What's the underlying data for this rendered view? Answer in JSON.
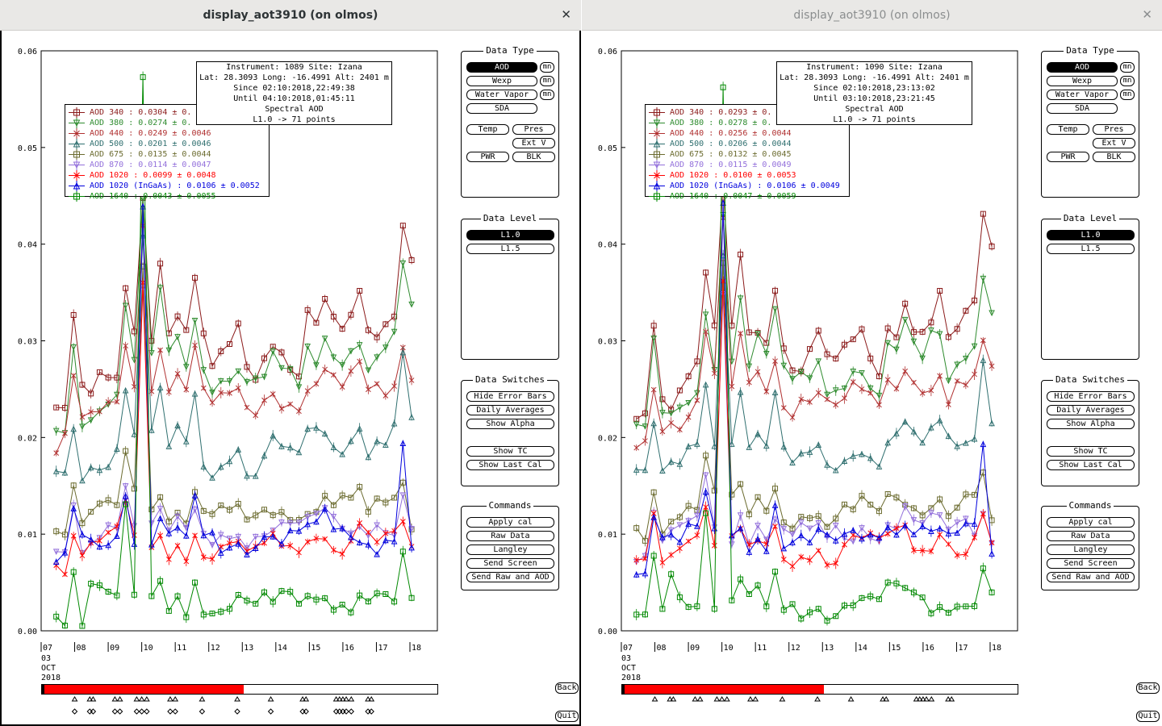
{
  "windows": [
    {
      "title": "display_aot3910 (on olmos)",
      "info": {
        "line1": "Instrument: 1089 Site: Izana",
        "line2": "Lat: 28.3093 Long: -16.4991 Alt: 2401 m",
        "line3": "Since 02:10:2018,22:49:38",
        "line4": "Until 04:10:2018,01:45:11",
        "line5": "Spectral AOD",
        "line6": "L1.0 -> 71 points"
      },
      "legend": [
        {
          "label": "AOD 340",
          "stat": ": 0.0304 ± 0.",
          "color": "#8b1a1a",
          "marker": "square"
        },
        {
          "label": "AOD 380",
          "stat": ": 0.0274 ± 0.",
          "color": "#2e8b2e",
          "marker": "tri-down"
        },
        {
          "label": "AOD 440",
          "stat": ": 0.0249 ± 0.0046",
          "color": "#b03030",
          "marker": "x"
        },
        {
          "label": "AOD 500",
          "stat": ": 0.0201 ± 0.0046",
          "color": "#2f6f6f",
          "marker": "tri-up"
        },
        {
          "label": "AOD 675",
          "stat": ": 0.0135 ± 0.0044",
          "color": "#6b6b2f",
          "marker": "square"
        },
        {
          "label": "AOD 870",
          "stat": ": 0.0114 ± 0.0047",
          "color": "#9370db",
          "marker": "tri-down"
        },
        {
          "label": "AOD 1020",
          "stat": ": 0.0099 ± 0.0048",
          "color": "#ff0000",
          "marker": "x"
        },
        {
          "label": "AOD 1020 (InGaAs)",
          "stat": ": 0.0106 ± 0.0052",
          "color": "#0000dd",
          "marker": "tri-up"
        },
        {
          "label": "AOD 1640",
          "stat": ": 0.0043 ± 0.0055",
          "color": "#008800",
          "marker": "square"
        }
      ],
      "timebar_fill": 0.51
    },
    {
      "title": "display_aot3910 (on olmos)",
      "info": {
        "line1": "Instrument: 1090 Site: Izana",
        "line2": "Lat: 28.3093 Long: -16.4991 Alt: 2401 m",
        "line3": "Since 02:10:2018,23:13:02",
        "line4": "Until 03:10:2018,23:21:45",
        "line5": "Spectral AOD",
        "line6": "L1.0 -> 71 points"
      },
      "legend": [
        {
          "label": "AOD 340",
          "stat": ": 0.0293 ± 0.",
          "color": "#8b1a1a",
          "marker": "square"
        },
        {
          "label": "AOD 380",
          "stat": ": 0.0278 ± 0.",
          "color": "#2e8b2e",
          "marker": "tri-down"
        },
        {
          "label": "AOD 440",
          "stat": ": 0.0256 ± 0.0044",
          "color": "#b03030",
          "marker": "x"
        },
        {
          "label": "AOD 500",
          "stat": ": 0.0206 ± 0.0044",
          "color": "#2f6f6f",
          "marker": "tri-up"
        },
        {
          "label": "AOD 675",
          "stat": ": 0.0132 ± 0.0045",
          "color": "#6b6b2f",
          "marker": "square"
        },
        {
          "label": "AOD 870",
          "stat": ": 0.0115 ± 0.0049",
          "color": "#9370db",
          "marker": "tri-down"
        },
        {
          "label": "AOD 1020",
          "stat": ": 0.0100 ± 0.0053",
          "color": "#ff0000",
          "marker": "x"
        },
        {
          "label": "AOD 1020 (InGaAs)",
          "stat": ": 0.0106 ± 0.0049",
          "color": "#0000dd",
          "marker": "tri-up"
        },
        {
          "label": "AOD 1640",
          "stat": ": 0.0047 ± 0.0059",
          "color": "#008800",
          "marker": "square"
        }
      ],
      "timebar_fill": 0.51
    }
  ],
  "panels": {
    "data_type": {
      "title": "Data Type",
      "aod": "AOD",
      "wexp": "Wexp",
      "water_vapor": "Water Vapor",
      "sda": "SDA",
      "mn": "mn",
      "temp": "Temp",
      "pres": "Pres",
      "ext_v": "Ext V",
      "pwr": "PWR",
      "blk": "BLK"
    },
    "data_level": {
      "title": "Data Level",
      "l10": "L1.0",
      "l15": "L1.5"
    },
    "data_switches": {
      "title": "Data Switches",
      "hide_error_bars": "Hide Error Bars",
      "daily_averages": "Daily Averages",
      "show_alpha": "Show Alpha",
      "show_tc": "Show TC",
      "show_last_cal": "Show Last Cal"
    },
    "commands": {
      "title": "Commands",
      "apply_cal": "Apply cal",
      "raw_data": "Raw Data",
      "langley": "Langley",
      "send_screen": "Send Screen",
      "send_raw_and_aod": "Send Raw and AOD"
    }
  },
  "nav": {
    "back": "Back",
    "quit": "Quit"
  },
  "chart_data": {
    "type": "line",
    "ylim": [
      0,
      0.06
    ],
    "yticks": [
      "0.00",
      "0.01",
      "0.02",
      "0.03",
      "0.04",
      "0.05",
      "0.06"
    ],
    "xticks": [
      "07",
      "08",
      "09",
      "10",
      "11",
      "12",
      "13",
      "14",
      "15",
      "16",
      "17",
      "18"
    ],
    "xdate_lines": [
      "03",
      "OCT",
      "2018"
    ],
    "x_hours_start": 7,
    "x_hours_end": 18,
    "series_base": {
      "AOD 340": [
        0.022,
        0.023,
        0.032,
        0.025,
        0.024,
        0.026,
        0.026,
        0.027,
        0.036,
        0.031,
        0.045,
        0.031,
        0.038,
        0.031,
        0.032,
        0.03,
        0.036,
        0.03,
        0.027,
        0.028,
        0.029,
        0.031,
        0.028,
        0.027,
        0.029,
        0.03,
        0.03,
        0.028,
        0.027,
        0.032,
        0.031,
        0.034,
        0.032,
        0.031,
        0.032,
        0.034,
        0.03,
        0.031,
        0.032,
        0.033,
        0.042,
        0.039
      ],
      "AOD 380": [
        0.021,
        0.021,
        0.03,
        0.022,
        0.022,
        0.023,
        0.024,
        0.025,
        0.033,
        0.028,
        0.044,
        0.028,
        0.035,
        0.028,
        0.03,
        0.028,
        0.033,
        0.027,
        0.025,
        0.026,
        0.026,
        0.028,
        0.025,
        0.025,
        0.026,
        0.028,
        0.027,
        0.026,
        0.025,
        0.029,
        0.028,
        0.031,
        0.029,
        0.028,
        0.03,
        0.03,
        0.027,
        0.028,
        0.029,
        0.03,
        0.037,
        0.033
      ],
      "AOD 440": [
        0.0195,
        0.02,
        0.026,
        0.021,
        0.022,
        0.022,
        0.023,
        0.023,
        0.03,
        0.026,
        0.042,
        0.025,
        0.03,
        0.025,
        0.027,
        0.025,
        0.029,
        0.024,
        0.023,
        0.024,
        0.024,
        0.025,
        0.023,
        0.023,
        0.024,
        0.025,
        0.024,
        0.024,
        0.023,
        0.026,
        0.026,
        0.027,
        0.026,
        0.025,
        0.026,
        0.027,
        0.024,
        0.025,
        0.025,
        0.026,
        0.03,
        0.027
      ],
      "AOD 500": [
        0.016,
        0.016,
        0.021,
        0.016,
        0.017,
        0.017,
        0.018,
        0.019,
        0.026,
        0.02,
        0.04,
        0.02,
        0.025,
        0.019,
        0.021,
        0.019,
        0.024,
        0.018,
        0.017,
        0.018,
        0.018,
        0.019,
        0.017,
        0.017,
        0.018,
        0.019,
        0.019,
        0.018,
        0.018,
        0.02,
        0.02,
        0.021,
        0.02,
        0.019,
        0.02,
        0.021,
        0.019,
        0.02,
        0.02,
        0.021,
        0.028,
        0.022
      ],
      "AOD 675": [
        0.0105,
        0.0105,
        0.015,
        0.011,
        0.012,
        0.012,
        0.013,
        0.013,
        0.018,
        0.014,
        0.038,
        0.013,
        0.015,
        0.012,
        0.013,
        0.012,
        0.015,
        0.012,
        0.011,
        0.012,
        0.012,
        0.012,
        0.011,
        0.011,
        0.012,
        0.012,
        0.013,
        0.012,
        0.012,
        0.013,
        0.013,
        0.014,
        0.013,
        0.013,
        0.013,
        0.014,
        0.012,
        0.013,
        0.013,
        0.014,
        0.016,
        0.011
      ],
      "AOD 870": [
        0.008,
        0.008,
        0.012,
        0.009,
        0.01,
        0.01,
        0.011,
        0.011,
        0.015,
        0.011,
        0.036,
        0.01,
        0.012,
        0.01,
        0.011,
        0.01,
        0.012,
        0.01,
        0.009,
        0.01,
        0.01,
        0.01,
        0.009,
        0.01,
        0.01,
        0.01,
        0.011,
        0.01,
        0.01,
        0.011,
        0.011,
        0.012,
        0.011,
        0.011,
        0.011,
        0.011,
        0.01,
        0.011,
        0.011,
        0.011,
        0.013,
        0.01
      ],
      "AOD 1020": [
        0.007,
        0.007,
        0.011,
        0.008,
        0.009,
        0.009,
        0.01,
        0.01,
        0.013,
        0.009,
        0.035,
        0.009,
        0.01,
        0.008,
        0.009,
        0.008,
        0.01,
        0.008,
        0.0075,
        0.008,
        0.008,
        0.009,
        0.008,
        0.008,
        0.009,
        0.009,
        0.009,
        0.009,
        0.009,
        0.01,
        0.01,
        0.01,
        0.009,
        0.009,
        0.009,
        0.01,
        0.009,
        0.009,
        0.009,
        0.01,
        0.011,
        0.009
      ],
      "AOD 1020 (InGaAs)": [
        0.007,
        0.007,
        0.012,
        0.009,
        0.009,
        0.009,
        0.01,
        0.01,
        0.014,
        0.01,
        0.044,
        0.01,
        0.011,
        0.009,
        0.01,
        0.009,
        0.013,
        0.009,
        0.009,
        0.009,
        0.009,
        0.01,
        0.009,
        0.009,
        0.01,
        0.01,
        0.01,
        0.01,
        0.01,
        0.011,
        0.011,
        0.012,
        0.01,
        0.01,
        0.01,
        0.01,
        0.009,
        0.009,
        0.01,
        0.01,
        0.02,
        0.009
      ],
      "AOD 1640": [
        0.0015,
        0.0015,
        0.007,
        0.0015,
        0.006,
        0.004,
        0.003,
        0.003,
        0.013,
        0.003,
        0.057,
        0.003,
        0.005,
        0.003,
        0.004,
        0.002,
        0.005,
        0.002,
        0.002,
        0.002,
        0.002,
        0.003,
        0.002,
        0.002,
        0.003,
        0.003,
        0.003,
        0.003,
        0.003,
        0.004,
        0.004,
        0.004,
        0.003,
        0.003,
        0.003,
        0.003,
        0.003,
        0.003,
        0.003,
        0.003,
        0.007,
        0.003
      ]
    }
  }
}
